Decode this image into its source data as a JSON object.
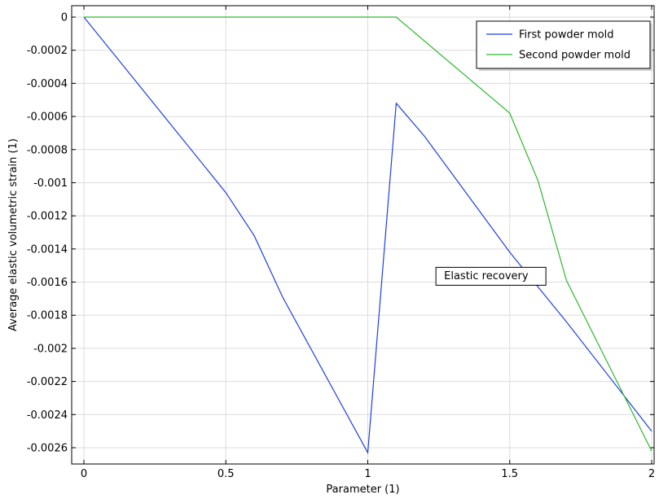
{
  "chart_data": {
    "type": "line",
    "title": "",
    "xlabel": "Parameter (1)",
    "ylabel": "Average elastic volumetric strain (1)",
    "xlim": [
      0,
      2
    ],
    "ylim": [
      -0.0026,
      0
    ],
    "xticks": [
      "0",
      "0.5",
      "1",
      "1.5",
      "2"
    ],
    "xtick_values": [
      0,
      0.5,
      1,
      1.5,
      2
    ],
    "yticks": [
      "0",
      "-0.0002",
      "-0.0004",
      "-0.0006",
      "-0.0008",
      "-0.001",
      "-0.0012",
      "-0.0014",
      "-0.0016",
      "-0.0018",
      "-0.002",
      "-0.0022",
      "-0.0024",
      "-0.0026"
    ],
    "ytick_values": [
      0,
      -0.0002,
      -0.0004,
      -0.0006,
      -0.0008,
      -0.001,
      -0.0012,
      -0.0014,
      -0.0016,
      -0.0018,
      -0.002,
      -0.0022,
      -0.0024,
      -0.0026
    ],
    "grid": true,
    "legend_position": "top-right",
    "series": [
      {
        "name": "First powder mold",
        "color": "#1f3fe0",
        "x": [
          0,
          0.5,
          0.6,
          0.7,
          1.0,
          1.1,
          1.2,
          1.5,
          1.7,
          2.0
        ],
        "y": [
          0,
          -0.00106,
          -0.00132,
          -0.00169,
          -0.00263,
          -0.00052,
          -0.00072,
          -0.00142,
          -0.00184,
          -0.0025
        ]
      },
      {
        "name": "Second powder mold",
        "color": "#2db82d",
        "x": [
          0,
          1.1,
          1.5,
          1.6,
          1.7,
          2.0
        ],
        "y": [
          0,
          0,
          -0.00058,
          -0.00099,
          -0.00159,
          -0.00262
        ]
      }
    ],
    "annotations": [
      {
        "text": "Elastic recovery",
        "x": 1.24,
        "y": -0.00156
      }
    ]
  }
}
